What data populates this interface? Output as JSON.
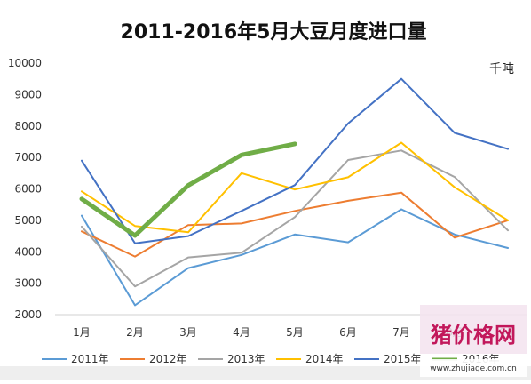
{
  "chart_data": {
    "type": "line",
    "title": "2011-2016年5月大豆月度进口量",
    "unit_label": "千吨",
    "categories": [
      "1月",
      "2月",
      "3月",
      "4月",
      "5月",
      "6月",
      "7月",
      "8月",
      "9月"
    ],
    "ylim": [
      2000,
      10000
    ],
    "yticks": [
      2000,
      3000,
      4000,
      5000,
      6000,
      7000,
      8000,
      9000,
      10000
    ],
    "grid": false,
    "legend_position": "bottom",
    "series": [
      {
        "name": "2011年",
        "color": "#5b9bd5",
        "width": 2,
        "values": [
          5150,
          2300,
          3480,
          3900,
          4550,
          4300,
          5350,
          4550,
          4120
        ]
      },
      {
        "name": "2012年",
        "color": "#ed7d31",
        "width": 2,
        "values": [
          4650,
          3850,
          4850,
          4900,
          5300,
          5620,
          5880,
          4450,
          5000
        ]
      },
      {
        "name": "2013年",
        "color": "#a5a5a5",
        "width": 2,
        "values": [
          4800,
          2900,
          3820,
          3970,
          5100,
          6920,
          7220,
          6380,
          4680
        ]
      },
      {
        "name": "2014年",
        "color": "#ffc000",
        "width": 2,
        "values": [
          5920,
          4820,
          4620,
          6500,
          5980,
          6370,
          7470,
          6050,
          5000
        ]
      },
      {
        "name": "2015年",
        "color": "#4472c4",
        "width": 2,
        "values": [
          6900,
          4270,
          4500,
          5300,
          6120,
          8080,
          9500,
          7780,
          7270
        ]
      },
      {
        "name": "2016年",
        "color": "#70ad47",
        "width": 5,
        "values": [
          5680,
          4520,
          6110,
          7080,
          7430,
          null,
          null,
          null,
          null
        ]
      }
    ]
  },
  "watermark": {
    "text": "猪价格网",
    "url": "www.zhujiage.com.cn"
  }
}
